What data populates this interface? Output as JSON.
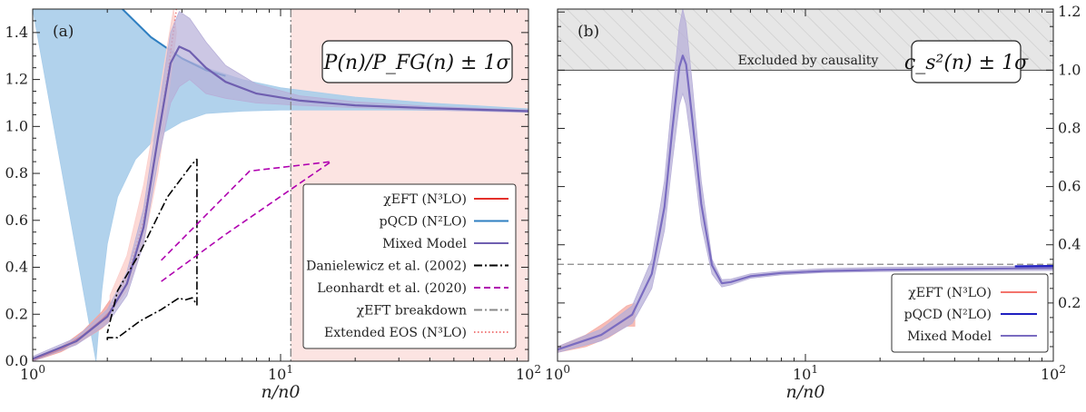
{
  "chart_data": [
    {
      "type": "line",
      "panel": "(a)",
      "title": "P(n)/P_FG(n) ± 1σ",
      "xlabel": "n/n0",
      "ylabel": "",
      "xscale": "log",
      "xlim": [
        1,
        100
      ],
      "ylim": [
        0,
        1.5
      ],
      "xticks": [
        {
          "v": 1,
          "label": "10^0"
        },
        {
          "v": 10,
          "label": "10^1"
        },
        {
          "v": 100,
          "label": "10^2"
        }
      ],
      "yticks": [
        {
          "v": 0,
          "label": "0.0"
        },
        {
          "v": 0.2,
          "label": "0.2"
        },
        {
          "v": 0.4,
          "label": "0.4"
        },
        {
          "v": 0.6,
          "label": "0.6"
        },
        {
          "v": 0.8,
          "label": "0.8"
        },
        {
          "v": 1.0,
          "label": "1.0"
        },
        {
          "v": 1.2,
          "label": "1.2"
        },
        {
          "v": 1.4,
          "label": "1.4"
        }
      ],
      "shaded_region": {
        "name": "χEFT breakdown region",
        "x_from": 11,
        "x_to": 100,
        "color": "#fce4e2"
      },
      "legend": {
        "position": "lower-right",
        "entries": [
          {
            "label": "χEFT (N³LO)",
            "color": "#e4302a",
            "style": "solid"
          },
          {
            "label": "pQCD (N²LO)",
            "color": "#2f7fc1",
            "style": "solid"
          },
          {
            "label": "Mixed Model",
            "color": "#6f5fb0",
            "style": "solid"
          },
          {
            "label": "Danielewicz et al. (2002)",
            "color": "#000000",
            "style": "dashdot"
          },
          {
            "label": "Leonhardt et al. (2020)",
            "color": "#b000b0",
            "style": "dashed"
          },
          {
            "label": "χEFT breakdown",
            "color": "#888888",
            "style": "dashdot"
          },
          {
            "label": "Extended EOS (N³LO)",
            "color": "#f07c7c",
            "style": "dotted"
          }
        ]
      },
      "series": [
        {
          "name": "pQCD (N²LO) band",
          "color": "#a9cdea",
          "upper": [
            [
              1.0,
              1.5
            ],
            [
              2.3,
              1.5
            ],
            [
              3.0,
              1.38
            ],
            [
              4.0,
              1.29
            ],
            [
              5.0,
              1.25
            ],
            [
              7.0,
              1.2
            ],
            [
              10,
              1.165
            ],
            [
              20,
              1.125
            ],
            [
              40,
              1.1
            ],
            [
              100,
              1.075
            ]
          ],
          "lower": [
            [
              1.8,
              0.0
            ],
            [
              1.9,
              0.3
            ],
            [
              2.0,
              0.5
            ],
            [
              2.2,
              0.7
            ],
            [
              2.6,
              0.86
            ],
            [
              3.2,
              0.96
            ],
            [
              4.0,
              1.02
            ],
            [
              5.0,
              1.055
            ],
            [
              7.0,
              1.065
            ],
            [
              10,
              1.07
            ],
            [
              30,
              1.07
            ],
            [
              100,
              1.065
            ]
          ]
        },
        {
          "name": "pQCD (N²LO)",
          "color": "#2f7fc1",
          "points": [
            [
              2.3,
              1.5
            ],
            [
              3.0,
              1.38
            ],
            [
              4.0,
              1.29
            ],
            [
              5.0,
              1.24
            ],
            [
              6.0,
              1.215
            ]
          ]
        },
        {
          "name": "χEFT (N³LO) band",
          "color": "#f3a6a0",
          "upper": [
            [
              1.0,
              0.01
            ],
            [
              1.3,
              0.06
            ],
            [
              1.6,
              0.13
            ],
            [
              1.9,
              0.21
            ],
            [
              2.05,
              0.26
            ]
          ],
          "lower": [
            [
              1.0,
              0.0
            ],
            [
              1.3,
              0.04
            ],
            [
              1.6,
              0.09
            ],
            [
              1.9,
              0.14
            ],
            [
              2.05,
              0.17
            ]
          ]
        },
        {
          "name": "χEFT (N³LO)",
          "color": "#e4302a",
          "points": [
            [
              1.0,
              0.005
            ],
            [
              1.3,
              0.05
            ],
            [
              1.6,
              0.11
            ],
            [
              1.9,
              0.175
            ],
            [
              2.05,
              0.21
            ]
          ]
        },
        {
          "name": "Extended EOS (N³LO) band",
          "color": "#fbd0cc",
          "upper": [
            [
              2.05,
              0.28
            ],
            [
              2.4,
              0.45
            ],
            [
              2.8,
              0.75
            ],
            [
              3.2,
              1.1
            ],
            [
              3.5,
              1.35
            ],
            [
              3.7,
              1.5
            ]
          ],
          "lower": [
            [
              2.05,
              0.2
            ],
            [
              2.4,
              0.3
            ],
            [
              2.8,
              0.5
            ],
            [
              3.2,
              0.8
            ],
            [
              3.5,
              1.1
            ],
            [
              3.8,
              1.4
            ]
          ]
        },
        {
          "name": "Extended EOS (N³LO)",
          "color": "#f07c7c",
          "points": [
            [
              2.05,
              0.22
            ],
            [
              2.4,
              0.36
            ],
            [
              2.8,
              0.6
            ],
            [
              3.2,
              0.95
            ],
            [
              3.5,
              1.22
            ],
            [
              3.8,
              1.5
            ]
          ]
        },
        {
          "name": "Mixed Model band",
          "color": "#b7afd8",
          "upper": [
            [
              1.0,
              0.02
            ],
            [
              1.5,
              0.1
            ],
            [
              2.0,
              0.22
            ],
            [
              2.4,
              0.38
            ],
            [
              2.8,
              0.65
            ],
            [
              3.2,
              1.05
            ],
            [
              3.6,
              1.4
            ],
            [
              3.9,
              1.49
            ],
            [
              4.3,
              1.46
            ],
            [
              5.0,
              1.36
            ],
            [
              6.0,
              1.26
            ],
            [
              8.0,
              1.18
            ],
            [
              12,
              1.13
            ],
            [
              20,
              1.105
            ],
            [
              40,
              1.085
            ],
            [
              100,
              1.07
            ]
          ],
          "lower": [
            [
              1.0,
              0.0
            ],
            [
              1.5,
              0.07
            ],
            [
              2.0,
              0.16
            ],
            [
              2.4,
              0.28
            ],
            [
              2.8,
              0.5
            ],
            [
              3.2,
              0.85
            ],
            [
              3.6,
              1.1
            ],
            [
              3.9,
              1.17
            ],
            [
              4.3,
              1.2
            ],
            [
              5.0,
              1.14
            ],
            [
              6.0,
              1.12
            ],
            [
              8.0,
              1.1
            ],
            [
              12,
              1.09
            ],
            [
              20,
              1.08
            ],
            [
              40,
              1.07
            ],
            [
              100,
              1.06
            ]
          ]
        },
        {
          "name": "Mixed Model",
          "color": "#6f5fb0",
          "points": [
            [
              1.0,
              0.01
            ],
            [
              1.5,
              0.085
            ],
            [
              2.0,
              0.19
            ],
            [
              2.4,
              0.33
            ],
            [
              2.8,
              0.57
            ],
            [
              3.2,
              0.95
            ],
            [
              3.6,
              1.27
            ],
            [
              3.9,
              1.34
            ],
            [
              4.3,
              1.32
            ],
            [
              5.0,
              1.25
            ],
            [
              6.0,
              1.19
            ],
            [
              8.0,
              1.14
            ],
            [
              12,
              1.11
            ],
            [
              20,
              1.09
            ],
            [
              40,
              1.078
            ],
            [
              100,
              1.065
            ]
          ]
        },
        {
          "name": "Danielewicz et al. (2002)",
          "color": "#000000",
          "points": [
            [
              2.0,
              0.09
            ],
            [
              2.0,
              0.1
            ],
            [
              2.2,
              0.1
            ],
            [
              2.7,
              0.17
            ],
            [
              3.3,
              0.22
            ],
            [
              3.9,
              0.27
            ],
            [
              4.1,
              0.26
            ],
            [
              4.4,
              0.27
            ],
            [
              4.6,
              0.24
            ],
            [
              4.6,
              0.86
            ],
            [
              4.4,
              0.84
            ],
            [
              3.5,
              0.7
            ],
            [
              2.7,
              0.46
            ],
            [
              2.2,
              0.3
            ],
            [
              2.0,
              0.12
            ]
          ]
        },
        {
          "name": "Leonhardt et al. (2020)",
          "color": "#b000b0",
          "points": [
            [
              3.3,
              0.34
            ],
            [
              6.0,
              0.54
            ],
            [
              16,
              0.85
            ],
            [
              7.5,
              0.81
            ],
            [
              3.3,
              0.43
            ]
          ]
        }
      ],
      "vlines": [
        {
          "name": "χEFT breakdown",
          "x": 11,
          "color": "#888888",
          "style": "dashdot"
        }
      ]
    },
    {
      "type": "line",
      "panel": "(b)",
      "title": "c_s²(n) ± 1σ",
      "xlabel": "n/n0",
      "ylabel": "",
      "xscale": "log",
      "xlim": [
        1,
        100
      ],
      "ylim": [
        0,
        1.21
      ],
      "xticks": [
        {
          "v": 1,
          "label": "10^0"
        },
        {
          "v": 10,
          "label": "10^1"
        },
        {
          "v": 100,
          "label": "10^2"
        }
      ],
      "yticks": [
        {
          "v": 0.2,
          "label": "0.2"
        },
        {
          "v": 0.4,
          "label": "0.4"
        },
        {
          "v": 0.6,
          "label": "0.6"
        },
        {
          "v": 0.8,
          "label": "0.8"
        },
        {
          "v": 1.0,
          "label": "1.0"
        },
        {
          "v": 1.2,
          "label": "1.2"
        }
      ],
      "excluded_region": {
        "label": "Excluded by causality",
        "y_from": 1.0,
        "y_to": 1.21
      },
      "hline": {
        "y": 0.333,
        "color": "#888888",
        "style": "dashed"
      },
      "legend": {
        "position": "lower-right",
        "entries": [
          {
            "label": "χEFT (N³LO)",
            "color": "#f3746c",
            "style": "solid"
          },
          {
            "label": "pQCD (N²LO)",
            "color": "#1f1fc0",
            "style": "solid"
          },
          {
            "label": "Mixed Model",
            "color": "#7a6cc0",
            "style": "solid"
          }
        ]
      },
      "series": [
        {
          "name": "χEFT (N³LO) band",
          "color": "#f6b0a8",
          "upper": [
            [
              1.0,
              0.05
            ],
            [
              1.3,
              0.09
            ],
            [
              1.6,
              0.14
            ],
            [
              1.9,
              0.19
            ],
            [
              2.05,
              0.2
            ]
          ],
          "lower": [
            [
              1.0,
              0.03
            ],
            [
              1.3,
              0.05
            ],
            [
              1.6,
              0.08
            ],
            [
              1.9,
              0.12
            ],
            [
              2.05,
              0.12
            ]
          ]
        },
        {
          "name": "Mixed Model band",
          "color": "#b7afd8",
          "upper": [
            [
              1.0,
              0.05
            ],
            [
              1.5,
              0.11
            ],
            [
              2.0,
              0.19
            ],
            [
              2.4,
              0.35
            ],
            [
              2.7,
              0.62
            ],
            [
              2.9,
              0.9
            ],
            [
              3.1,
              1.15
            ],
            [
              3.2,
              1.21
            ],
            [
              3.3,
              1.16
            ],
            [
              3.5,
              0.95
            ],
            [
              3.8,
              0.62
            ],
            [
              4.2,
              0.35
            ],
            [
              4.6,
              0.28
            ],
            [
              5.0,
              0.282
            ],
            [
              6.0,
              0.3
            ],
            [
              8.0,
              0.31
            ],
            [
              12,
              0.318
            ],
            [
              20,
              0.322
            ],
            [
              40,
              0.325
            ],
            [
              100,
              0.327
            ]
          ],
          "lower": [
            [
              1.0,
              0.03
            ],
            [
              1.5,
              0.07
            ],
            [
              2.0,
              0.13
            ],
            [
              2.4,
              0.25
            ],
            [
              2.7,
              0.45
            ],
            [
              2.9,
              0.68
            ],
            [
              3.1,
              0.88
            ],
            [
              3.2,
              0.92
            ],
            [
              3.3,
              0.88
            ],
            [
              3.5,
              0.72
            ],
            [
              3.8,
              0.47
            ],
            [
              4.2,
              0.3
            ],
            [
              4.6,
              0.255
            ],
            [
              5.0,
              0.262
            ],
            [
              6.0,
              0.285
            ],
            [
              8.0,
              0.297
            ],
            [
              12,
              0.305
            ],
            [
              20,
              0.308
            ],
            [
              40,
              0.31
            ],
            [
              100,
              0.312
            ]
          ]
        },
        {
          "name": "Mixed Model",
          "color": "#7a6cc0",
          "points": [
            [
              1.0,
              0.04
            ],
            [
              1.5,
              0.09
            ],
            [
              2.0,
              0.16
            ],
            [
              2.4,
              0.3
            ],
            [
              2.7,
              0.53
            ],
            [
              2.9,
              0.79
            ],
            [
              3.1,
              1.01
            ],
            [
              3.2,
              1.05
            ],
            [
              3.3,
              1.02
            ],
            [
              3.5,
              0.83
            ],
            [
              3.8,
              0.54
            ],
            [
              4.2,
              0.33
            ],
            [
              4.6,
              0.268
            ],
            [
              5.0,
              0.272
            ],
            [
              6.0,
              0.292
            ],
            [
              8.0,
              0.303
            ],
            [
              12,
              0.31
            ],
            [
              20,
              0.314
            ],
            [
              40,
              0.317
            ],
            [
              100,
              0.32
            ]
          ]
        },
        {
          "name": "pQCD (N²LO)",
          "color": "#1f1fc0",
          "points": [
            [
              70,
              0.326
            ],
            [
              100,
              0.327
            ]
          ]
        }
      ]
    }
  ]
}
